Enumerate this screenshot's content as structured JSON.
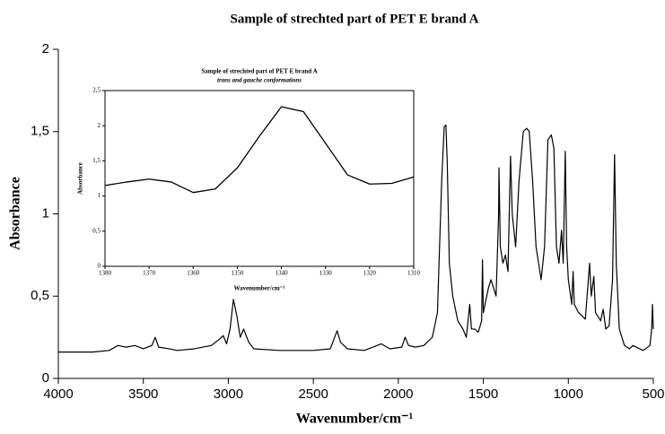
{
  "chart_data": [
    {
      "type": "line",
      "title": "Sample of strechted part of PET E brand A",
      "xlabel": "Wavenumber/cm⁻¹",
      "ylabel": "Absorbance",
      "color": "#000000",
      "xlim": [
        4000,
        500
      ],
      "ylim": [
        0,
        2
      ],
      "xticks": [
        4000,
        3500,
        3000,
        2500,
        2000,
        1500,
        1000,
        500
      ],
      "yticks": [
        0,
        {
          "value": 0.5,
          "label": "0,5"
        },
        1,
        {
          "value": 1.5,
          "label": "1,5"
        },
        2
      ],
      "x": [
        4000,
        3800,
        3700,
        3650,
        3600,
        3550,
        3500,
        3450,
        3430,
        3410,
        3350,
        3300,
        3200,
        3100,
        3050,
        3030,
        3010,
        2990,
        2970,
        2950,
        2930,
        2910,
        2880,
        2850,
        2700,
        2500,
        2400,
        2360,
        2340,
        2300,
        2200,
        2100,
        2050,
        1980,
        1960,
        1940,
        1900,
        1850,
        1800,
        1770,
        1745,
        1730,
        1720,
        1712,
        1700,
        1680,
        1650,
        1620,
        1600,
        1580,
        1570,
        1550,
        1530,
        1510,
        1505,
        1500,
        1470,
        1455,
        1440,
        1425,
        1410,
        1408,
        1400,
        1385,
        1370,
        1355,
        1340,
        1330,
        1310,
        1290,
        1265,
        1245,
        1230,
        1210,
        1190,
        1175,
        1160,
        1140,
        1120,
        1100,
        1085,
        1070,
        1055,
        1040,
        1030,
        1018,
        1010,
        1000,
        980,
        972,
        965,
        940,
        900,
        875,
        865,
        850,
        840,
        810,
        795,
        780,
        760,
        740,
        728,
        718,
        700,
        670,
        640,
        620,
        560,
        520,
        510,
        505,
        500
      ],
      "values": [
        0.16,
        0.16,
        0.17,
        0.2,
        0.19,
        0.2,
        0.18,
        0.2,
        0.25,
        0.19,
        0.18,
        0.17,
        0.18,
        0.2,
        0.24,
        0.26,
        0.21,
        0.3,
        0.48,
        0.38,
        0.25,
        0.3,
        0.22,
        0.18,
        0.17,
        0.17,
        0.18,
        0.29,
        0.22,
        0.18,
        0.17,
        0.21,
        0.18,
        0.19,
        0.25,
        0.2,
        0.19,
        0.2,
        0.25,
        0.4,
        1.2,
        1.53,
        1.54,
        1.3,
        0.7,
        0.5,
        0.35,
        0.3,
        0.25,
        0.45,
        0.3,
        0.3,
        0.28,
        0.35,
        0.72,
        0.4,
        0.55,
        0.6,
        0.55,
        0.5,
        1.0,
        1.28,
        0.8,
        0.7,
        0.75,
        0.65,
        1.35,
        1.0,
        0.8,
        1.2,
        1.5,
        1.52,
        1.5,
        1.2,
        0.8,
        0.7,
        0.6,
        0.8,
        1.45,
        1.48,
        1.4,
        0.8,
        0.7,
        0.9,
        0.7,
        1.38,
        0.8,
        0.6,
        0.45,
        0.65,
        0.45,
        0.4,
        0.36,
        0.7,
        0.5,
        0.62,
        0.4,
        0.35,
        0.42,
        0.3,
        0.32,
        0.6,
        1.36,
        0.7,
        0.3,
        0.2,
        0.18,
        0.2,
        0.17,
        0.2,
        0.3,
        0.45,
        0.3
      ]
    },
    {
      "type": "line",
      "title": "Sample of strechted part of PET E brand A",
      "subtitle": "trans and gauche conformations",
      "xlabel": "Wavenumber/cm⁻¹",
      "ylabel": "Absorbance",
      "color": "#000000",
      "xlim": [
        1380,
        1310
      ],
      "ylim": [
        0,
        2.5
      ],
      "xticks": [
        1380,
        1370,
        1360,
        1350,
        1340,
        1330,
        1320,
        1310
      ],
      "yticks": [
        0,
        {
          "value": 0.5,
          "label": "0,5"
        },
        1,
        {
          "value": 1.5,
          "label": "1,5"
        },
        2,
        {
          "value": 2.5,
          "label": "2,5"
        }
      ],
      "x": [
        1380,
        1375,
        1370,
        1365,
        1360,
        1355,
        1350,
        1345,
        1340,
        1335,
        1330,
        1325,
        1320,
        1315,
        1310
      ],
      "values": [
        1.15,
        1.2,
        1.24,
        1.2,
        1.05,
        1.1,
        1.4,
        1.85,
        2.27,
        2.2,
        1.75,
        1.3,
        1.17,
        1.18,
        1.27
      ]
    }
  ]
}
